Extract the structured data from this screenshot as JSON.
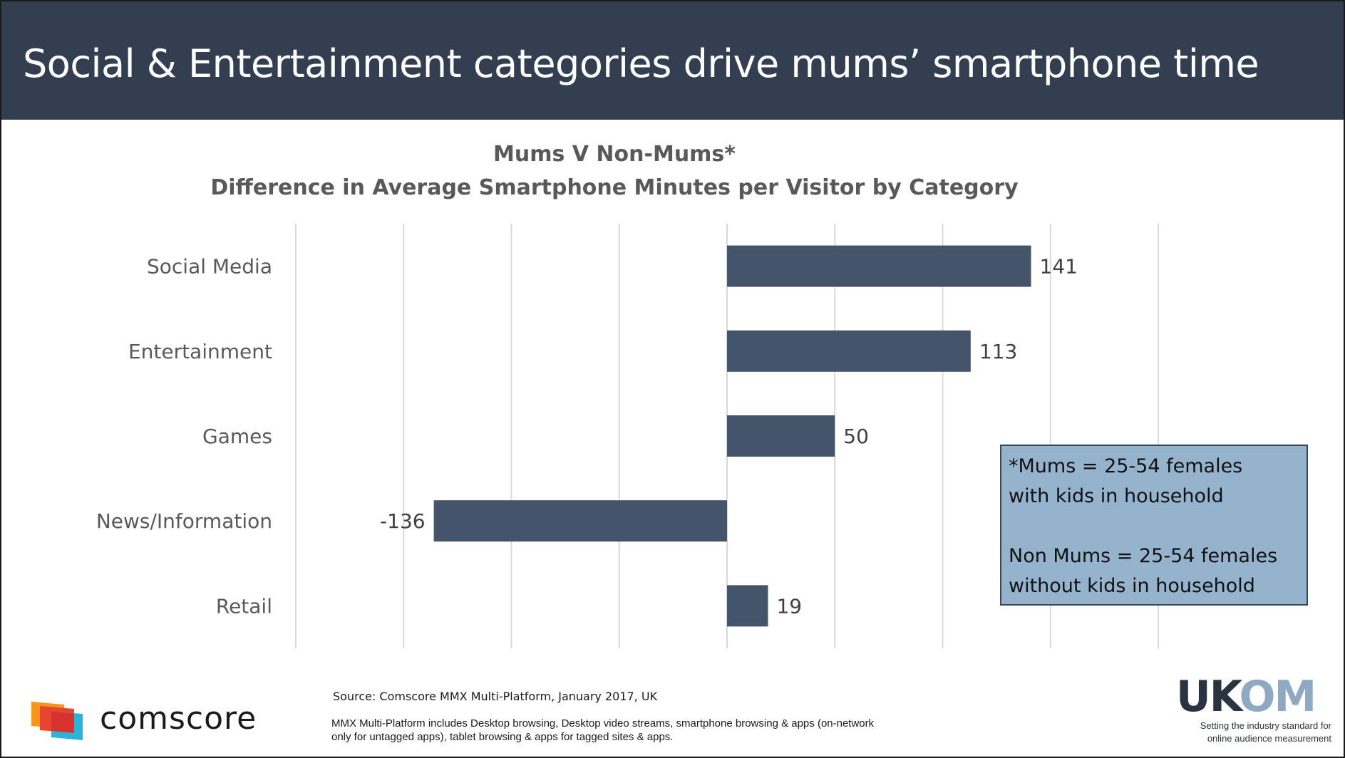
{
  "header": {
    "title": "Social & Entertainment categories drive mums’ smartphone time"
  },
  "chart_data": {
    "type": "bar",
    "orientation": "horizontal",
    "title": "Mums V Non-Mums*",
    "subtitle": "Difference in Average Smartphone Minutes per Visitor by Category",
    "categories": [
      "Social Media",
      "Entertainment",
      "Games",
      "News/Information",
      "Retail"
    ],
    "values": [
      141,
      113,
      50,
      -136,
      19
    ],
    "value_labels": [
      "141",
      "113",
      "50",
      "-136",
      "19"
    ],
    "xlim": [
      -200,
      200
    ],
    "grid": true,
    "bar_color": "#44546a"
  },
  "note": {
    "line1": "*Mums = 25-54 females",
    "line2": "with kids in household",
    "line3": "Non Mums = 25-54 females",
    "line4": "without kids in household"
  },
  "footer": {
    "brand": "comscore",
    "source": "Source: Comscore MMX Multi-Platform, January 2017, UK",
    "footnote_line1": "MMX Multi-Platform includes Desktop browsing, Desktop video streams, smartphone browsing & apps (on-network",
    "footnote_line2": "only for untagged apps), tablet browsing & apps for tagged sites & apps.",
    "ukom_dark": "UK",
    "ukom_o": "O",
    "ukom_light": "M",
    "ukom_tag_line1": "Setting the industry standard for",
    "ukom_tag_line2": "online audience measurement"
  },
  "colors": {
    "header_bg": "#333f50",
    "bar": "#44546a",
    "note_bg": "#95b3cc",
    "grid": "#d9d9d9"
  }
}
